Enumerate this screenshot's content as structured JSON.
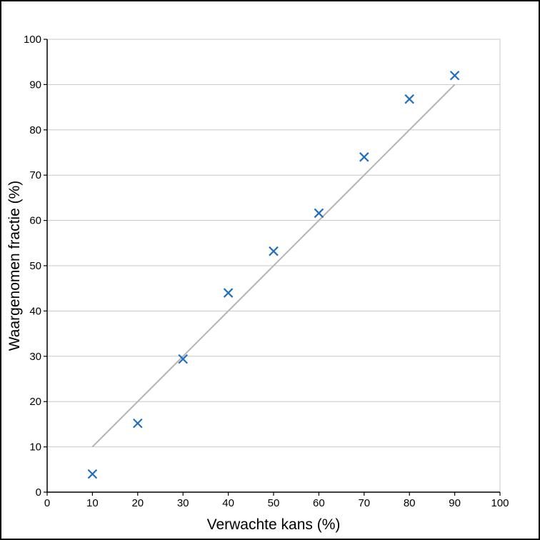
{
  "chart_data": {
    "type": "scatter",
    "title": "",
    "xlabel": "Verwachte kans (%)",
    "ylabel": "Waargenomen fractie (%)",
    "xlim": [
      0,
      100
    ],
    "ylim": [
      0,
      100
    ],
    "xticks": [
      "0",
      "10",
      "20",
      "30",
      "40",
      "50",
      "60",
      "70",
      "80",
      "90",
      "100"
    ],
    "yticks": [
      "0",
      "10",
      "20",
      "30",
      "40",
      "50",
      "60",
      "70",
      "80",
      "90",
      "100"
    ],
    "grid": "horizontal",
    "marker": "x",
    "series": [
      {
        "x": [
          10,
          20,
          30,
          40,
          50,
          60,
          70,
          80,
          90
        ],
        "y": [
          4,
          15.2,
          29.4,
          44,
          53.2,
          61.6,
          74,
          86.8,
          92
        ],
        "color": "#1f6fbf"
      }
    ],
    "reference_line": {
      "x": [
        10,
        90
      ],
      "y": [
        10,
        90
      ],
      "color": "#b3b3b3"
    }
  }
}
